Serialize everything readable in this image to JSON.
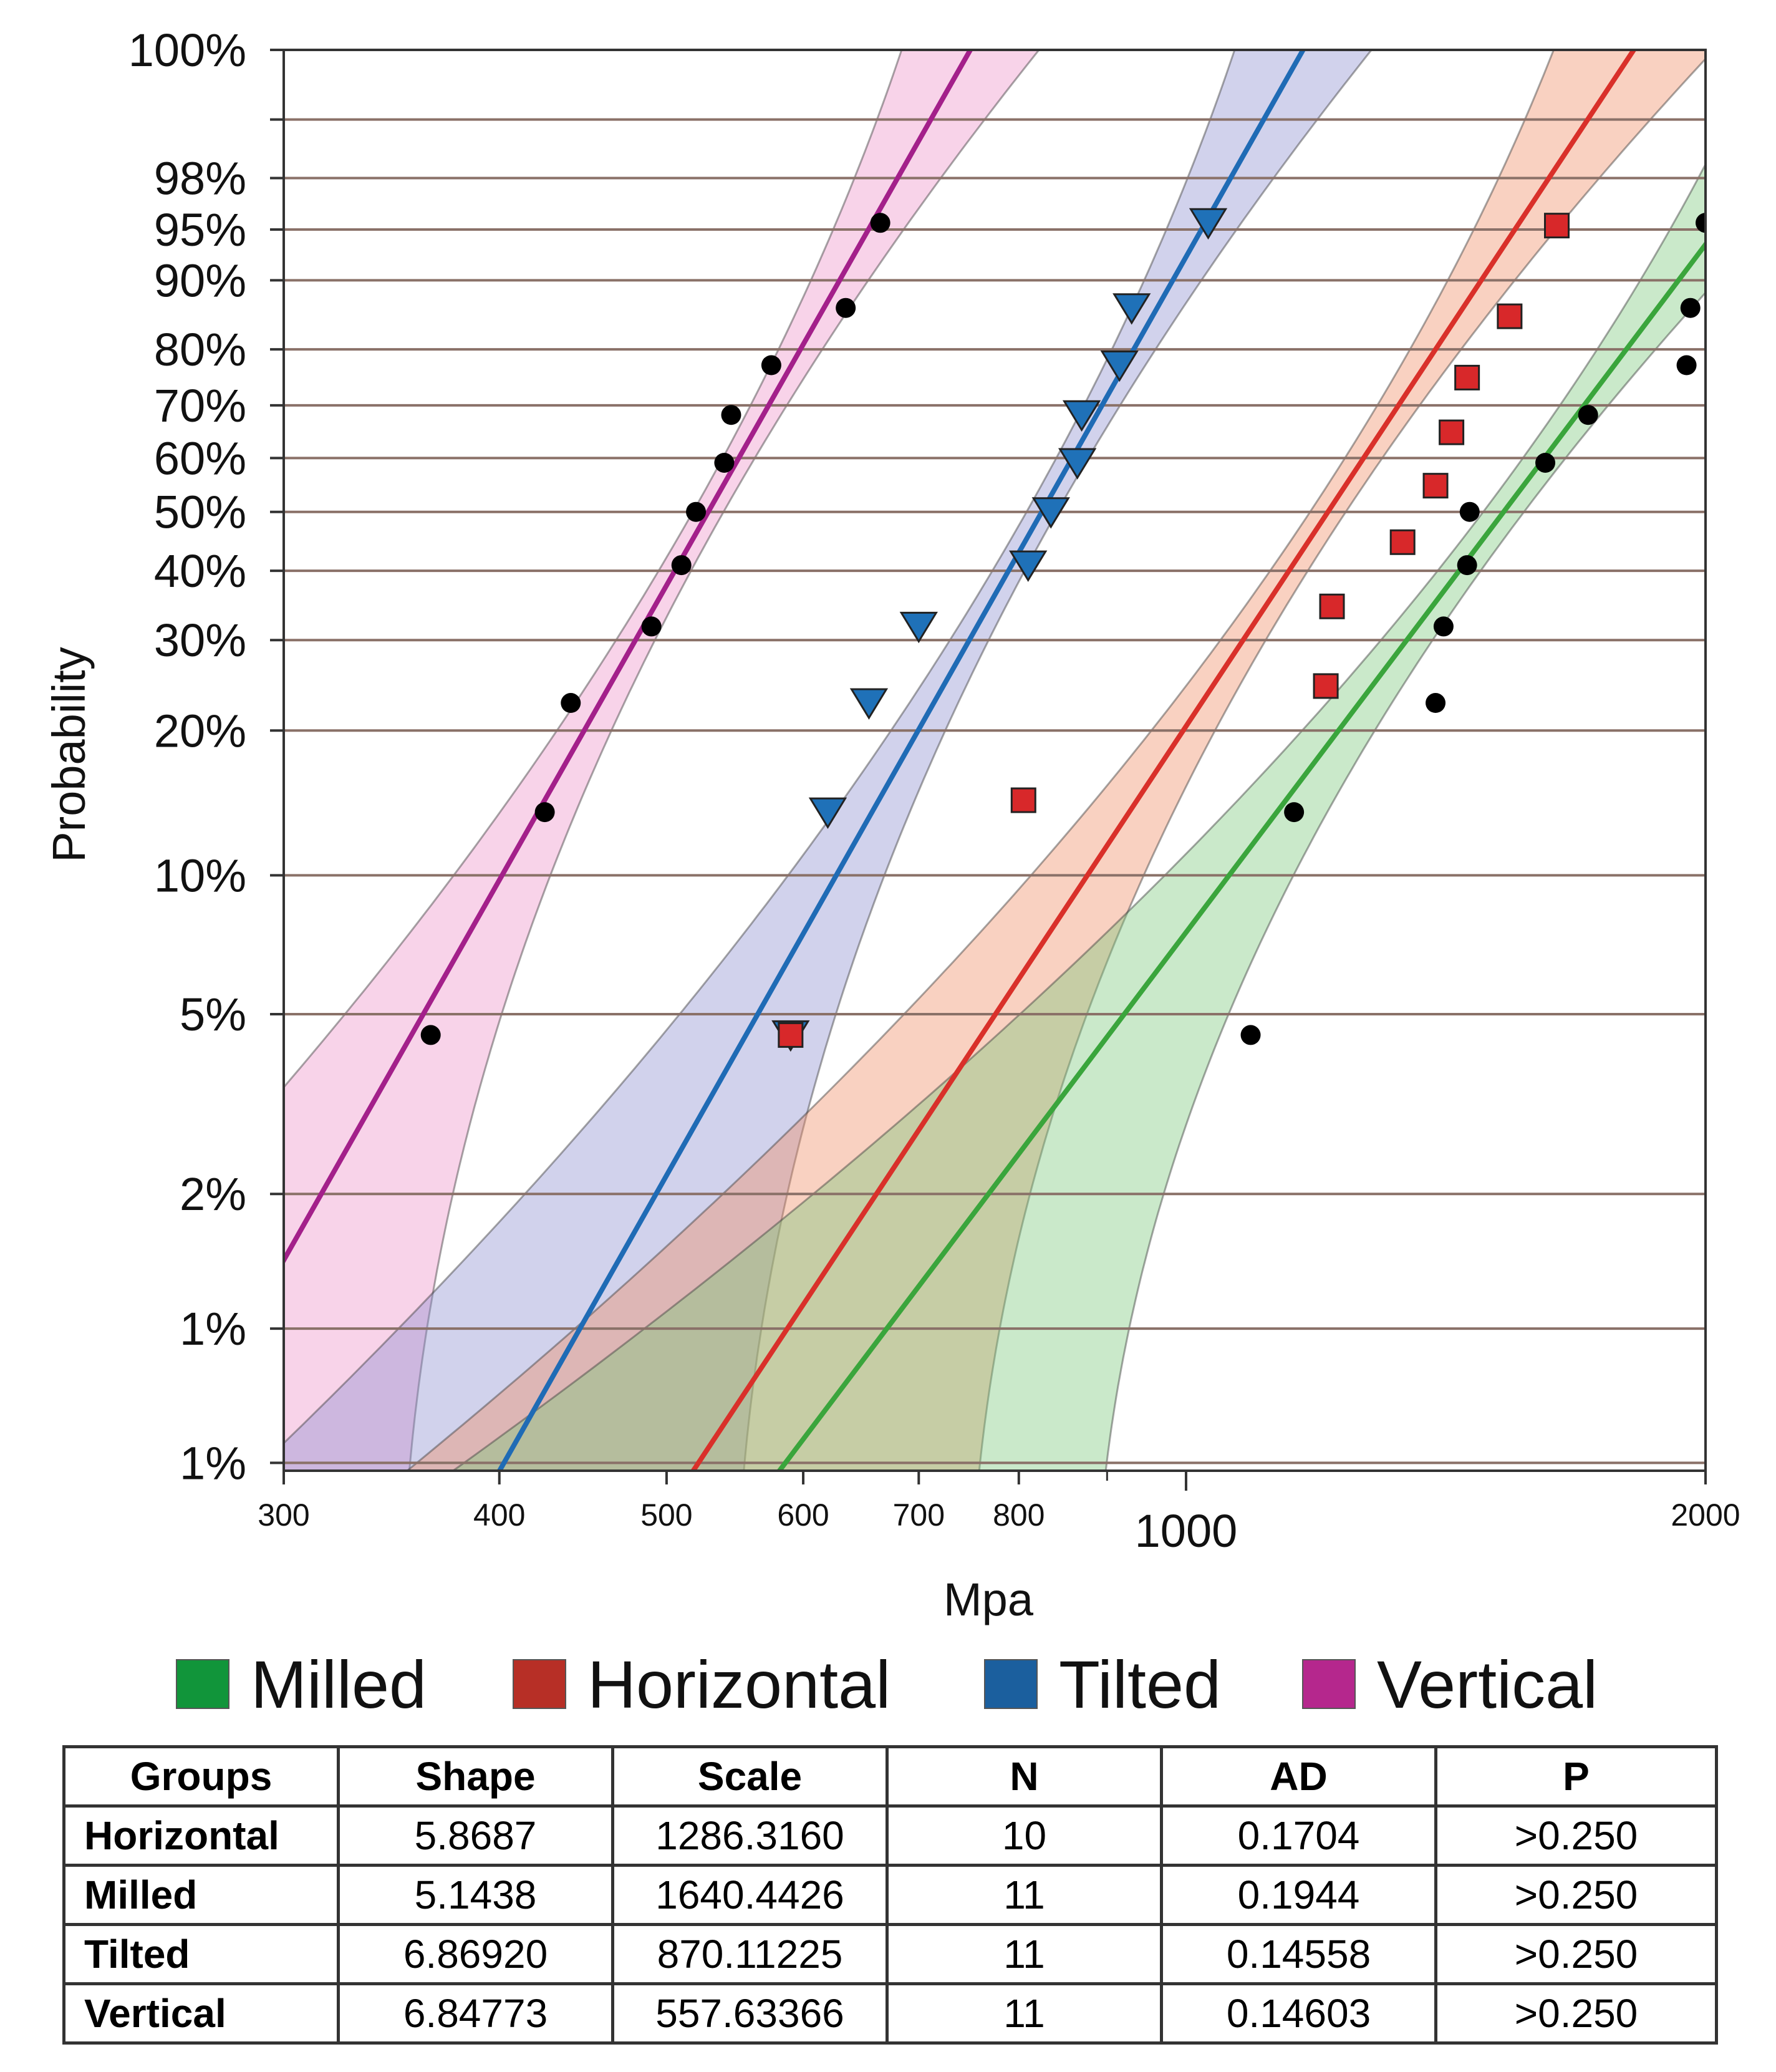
{
  "chart_data": {
    "type": "scatter",
    "subtype": "weibull probability plot",
    "xlabel": "Mpa",
    "ylabel": "Probability",
    "xscale": "log",
    "xlim": [
      300,
      2000
    ],
    "x_ticks": [
      {
        "value": 300,
        "label": "300"
      },
      {
        "value": 400,
        "label": "400"
      },
      {
        "value": 500,
        "label": "500"
      },
      {
        "value": 600,
        "label": "600"
      },
      {
        "value": 700,
        "label": "700"
      },
      {
        "value": 800,
        "label": "800"
      },
      {
        "value": 1000,
        "label": "1000"
      },
      {
        "value": 2000,
        "label": "2000"
      }
    ],
    "y_ticks": [
      {
        "value": 0.005,
        "label": "1%"
      },
      {
        "value": 0.01,
        "label": "1%"
      },
      {
        "value": 0.02,
        "label": "2%"
      },
      {
        "value": 0.05,
        "label": "5%"
      },
      {
        "value": 0.1,
        "label": "10%"
      },
      {
        "value": 0.2,
        "label": "20%"
      },
      {
        "value": 0.3,
        "label": "30%"
      },
      {
        "value": 0.4,
        "label": "40%"
      },
      {
        "value": 0.5,
        "label": "50%"
      },
      {
        "value": 0.6,
        "label": "60%"
      },
      {
        "value": 0.7,
        "label": "70%"
      },
      {
        "value": 0.8,
        "label": "80%"
      },
      {
        "value": 0.9,
        "label": "90%"
      },
      {
        "value": 0.95,
        "label": "95%"
      },
      {
        "value": 0.98,
        "label": "98%"
      },
      {
        "value": 0.995,
        "label": ""
      },
      {
        "value": 0.9995,
        "label": "100%"
      }
    ],
    "series": [
      {
        "name": "Milled",
        "color": "#11953a",
        "band_color": "#7bc97a",
        "line_color": "#3aa53c",
        "marker": "circle",
        "shape": 5.1438,
        "scale": 1640.4426,
        "points": [
          [
            1090,
            0.045
          ],
          [
            1155,
            0.136
          ],
          [
            1395,
            0.227
          ],
          [
            1410,
            0.318
          ],
          [
            1455,
            0.409
          ],
          [
            1460,
            0.5
          ],
          [
            1615,
            0.591
          ],
          [
            1710,
            0.682
          ],
          [
            1950,
            0.773
          ],
          [
            1960,
            0.864
          ],
          [
            2000,
            0.955
          ]
        ]
      },
      {
        "name": "Horizontal",
        "color": "#c0392b",
        "band_color": "#f08b63",
        "line_color": "#d9302a",
        "marker": "square",
        "shape": 5.8687,
        "scale": 1286.316,
        "points": [
          [
            590,
            0.045
          ],
          [
            805,
            0.144
          ],
          [
            1205,
            0.245
          ],
          [
            1215,
            0.346
          ],
          [
            1335,
            0.447
          ],
          [
            1395,
            0.548
          ],
          [
            1425,
            0.649
          ],
          [
            1455,
            0.751
          ],
          [
            1540,
            0.852
          ],
          [
            1640,
            0.953
          ]
        ]
      },
      {
        "name": "Tilted",
        "color": "#1f64a4",
        "band_color": "#8c8fd0",
        "line_color": "#1f6bb5",
        "marker": "triangle",
        "shape": 6.8692,
        "scale": 870.11225,
        "points": [
          [
            590,
            0.045
          ],
          [
            620,
            0.136
          ],
          [
            655,
            0.227
          ],
          [
            700,
            0.318
          ],
          [
            810,
            0.409
          ],
          [
            835,
            0.5
          ],
          [
            865,
            0.591
          ],
          [
            870,
            0.682
          ],
          [
            915,
            0.773
          ],
          [
            930,
            0.864
          ],
          [
            1030,
            0.955
          ]
        ]
      },
      {
        "name": "Vertical",
        "color": "#b4298e",
        "band_color": "#ee90c8",
        "line_color": "#a3208a",
        "marker": "circle",
        "shape": 6.84773,
        "scale": 557.63366,
        "points": [
          [
            365,
            0.045
          ],
          [
            425,
            0.136
          ],
          [
            440,
            0.227
          ],
          [
            490,
            0.318
          ],
          [
            510,
            0.409
          ],
          [
            520,
            0.5
          ],
          [
            540,
            0.591
          ],
          [
            545,
            0.682
          ],
          [
            575,
            0.773
          ],
          [
            635,
            0.864
          ],
          [
            665,
            0.955
          ]
        ]
      }
    ]
  },
  "legend": {
    "items": [
      {
        "label": "Milled",
        "color": "#11953a"
      },
      {
        "label": "Horizontal",
        "color": "#b72f26"
      },
      {
        "label": "Tilted",
        "color": "#1b5f9e"
      },
      {
        "label": "Vertical",
        "color": "#b5278d"
      }
    ]
  },
  "table": {
    "headers": [
      "Groups",
      "Shape",
      "Scale",
      "N",
      "AD",
      "P"
    ],
    "rows": [
      [
        "Horizontal",
        "5.8687",
        "1286.3160",
        "10",
        "0.1704",
        ">0.250"
      ],
      [
        "Milled",
        "5.1438",
        "1640.4426",
        "11",
        "0.1944",
        ">0.250"
      ],
      [
        "Tilted",
        "6.86920",
        "870.11225",
        "11",
        "0.14558",
        ">0.250"
      ],
      [
        "Vertical",
        "6.84773",
        "557.63366",
        "11",
        "0.14603",
        ">0.250"
      ]
    ]
  }
}
